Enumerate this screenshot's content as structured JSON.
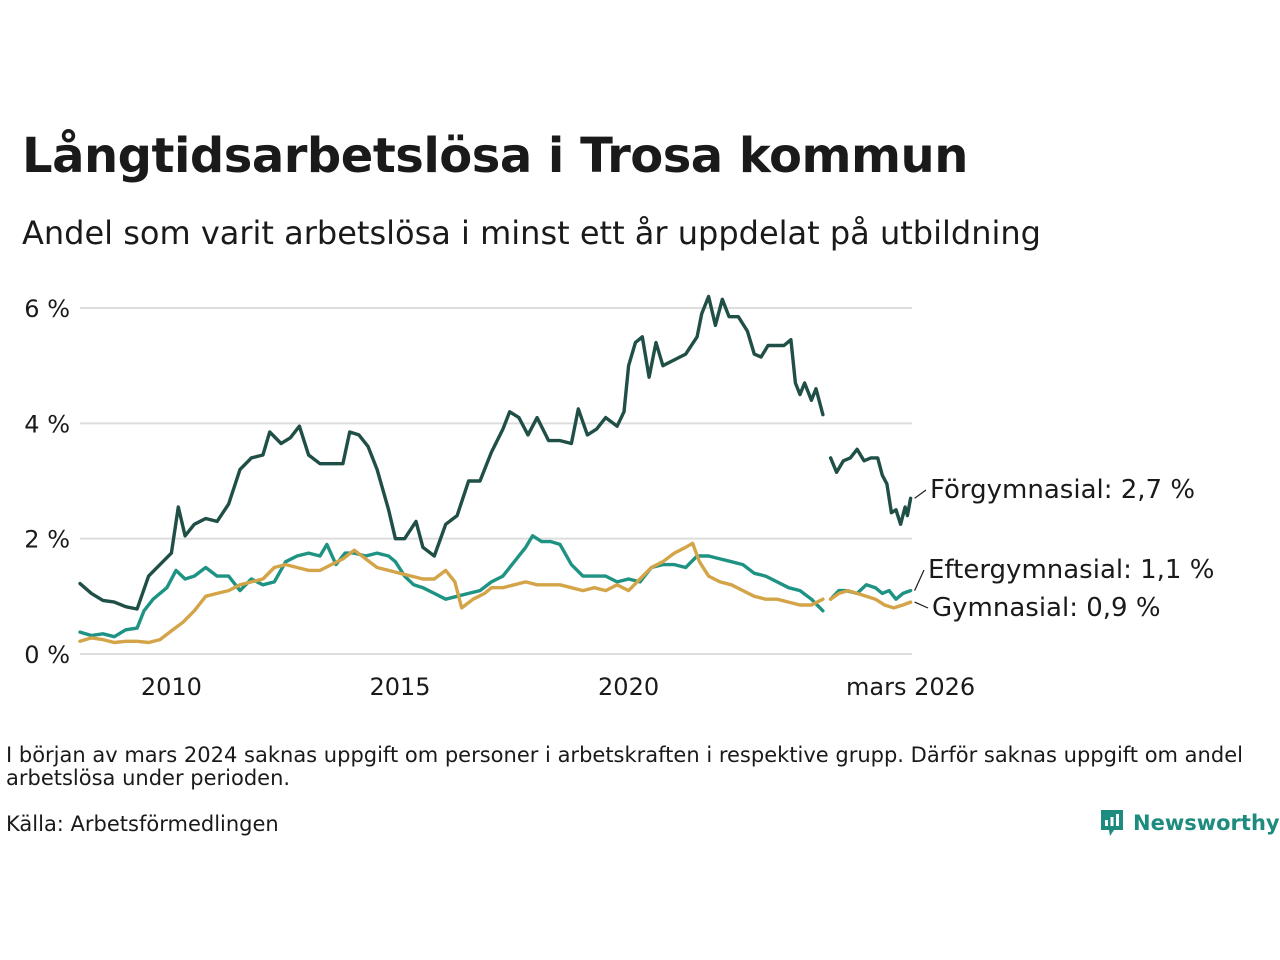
{
  "title": "Långtidsarbetslösa i Trosa kommun",
  "subtitle": "Andel som varit arbetslösa i minst ett år uppdelat på utbildning",
  "note": "I början av mars 2024 saknas uppgift om personer i arbetskraften i respektive grupp. Därför saknas uppgift om andel arbetslösa under perioden.",
  "source": "Källa: Arbetsförmedlingen",
  "brand": {
    "name": "Newsworthy",
    "icon": "bar-chart-logo-icon",
    "color": "#1d8c7f"
  },
  "chart_data": {
    "type": "line",
    "title": "Långtidsarbetslösa i Trosa kommun",
    "xlabel": "",
    "ylabel": "",
    "xlim": [
      2008.0,
      2026.2
    ],
    "ylim": [
      0,
      6.5
    ],
    "grid": true,
    "y_ticks": [
      0,
      2,
      4,
      6
    ],
    "y_tick_labels": [
      "0 %",
      "2 %",
      "4 %",
      "6 %"
    ],
    "x_ticks": [
      2010,
      2015,
      2020,
      2026.17
    ],
    "x_tick_labels": [
      "2010",
      "2015",
      "2020",
      "mars 2026"
    ],
    "gap": [
      2023.55,
      2024.33
    ],
    "series": [
      {
        "name": "Förgymnasial",
        "label": "Förgymnasial: 2,7 %",
        "color": "#1f4f46",
        "points": [
          [
            2008.0,
            1.22
          ],
          [
            2008.25,
            1.05
          ],
          [
            2008.5,
            0.93
          ],
          [
            2008.75,
            0.9
          ],
          [
            2009.0,
            0.82
          ],
          [
            2009.25,
            0.78
          ],
          [
            2009.5,
            1.35
          ],
          [
            2009.75,
            1.55
          ],
          [
            2010.0,
            1.75
          ],
          [
            2010.15,
            2.55
          ],
          [
            2010.3,
            2.05
          ],
          [
            2010.5,
            2.25
          ],
          [
            2010.75,
            2.35
          ],
          [
            2011.0,
            2.3
          ],
          [
            2011.25,
            2.6
          ],
          [
            2011.5,
            3.2
          ],
          [
            2011.75,
            3.4
          ],
          [
            2012.0,
            3.45
          ],
          [
            2012.15,
            3.85
          ],
          [
            2012.4,
            3.65
          ],
          [
            2012.6,
            3.75
          ],
          [
            2012.8,
            3.95
          ],
          [
            2013.0,
            3.45
          ],
          [
            2013.25,
            3.3
          ],
          [
            2013.5,
            3.3
          ],
          [
            2013.75,
            3.3
          ],
          [
            2013.9,
            3.85
          ],
          [
            2014.1,
            3.8
          ],
          [
            2014.3,
            3.6
          ],
          [
            2014.5,
            3.2
          ],
          [
            2014.75,
            2.5
          ],
          [
            2014.9,
            2.0
          ],
          [
            2015.1,
            2.0
          ],
          [
            2015.35,
            2.3
          ],
          [
            2015.5,
            1.85
          ],
          [
            2015.75,
            1.7
          ],
          [
            2016.0,
            2.25
          ],
          [
            2016.25,
            2.4
          ],
          [
            2016.5,
            3.0
          ],
          [
            2016.75,
            3.0
          ],
          [
            2017.0,
            3.5
          ],
          [
            2017.25,
            3.9
          ],
          [
            2017.4,
            4.2
          ],
          [
            2017.6,
            4.1
          ],
          [
            2017.8,
            3.8
          ],
          [
            2018.0,
            4.1
          ],
          [
            2018.25,
            3.7
          ],
          [
            2018.5,
            3.7
          ],
          [
            2018.75,
            3.65
          ],
          [
            2018.9,
            4.25
          ],
          [
            2019.1,
            3.8
          ],
          [
            2019.3,
            3.9
          ],
          [
            2019.5,
            4.1
          ],
          [
            2019.75,
            3.95
          ],
          [
            2019.9,
            4.2
          ],
          [
            2020.0,
            5.0
          ],
          [
            2020.15,
            5.4
          ],
          [
            2020.3,
            5.5
          ],
          [
            2020.45,
            4.8
          ],
          [
            2020.6,
            5.4
          ],
          [
            2020.75,
            5.0
          ],
          [
            2021.0,
            5.1
          ],
          [
            2021.25,
            5.2
          ],
          [
            2021.5,
            5.5
          ],
          [
            2021.6,
            5.9
          ],
          [
            2021.75,
            6.2
          ],
          [
            2021.9,
            5.7
          ],
          [
            2022.05,
            6.15
          ],
          [
            2022.2,
            5.85
          ],
          [
            2022.4,
            5.85
          ],
          [
            2022.6,
            5.6
          ],
          [
            2022.75,
            5.2
          ],
          [
            2022.9,
            5.15
          ],
          [
            2023.05,
            5.35
          ],
          [
            2023.25,
            5.35
          ],
          [
            2023.4,
            5.35
          ],
          [
            2023.55,
            5.45
          ],
          [
            2023.65,
            4.7
          ],
          [
            2023.75,
            4.5
          ],
          [
            2023.85,
            4.7
          ],
          [
            2024.0,
            4.4
          ],
          [
            2024.1,
            4.6
          ],
          [
            2024.25,
            4.15
          ],
          [
            2024.42,
            3.4
          ],
          [
            2024.55,
            3.15
          ],
          [
            2024.7,
            3.35
          ],
          [
            2024.85,
            3.4
          ],
          [
            2025.0,
            3.55
          ],
          [
            2025.15,
            3.35
          ],
          [
            2025.3,
            3.4
          ],
          [
            2025.45,
            3.4
          ],
          [
            2025.55,
            3.1
          ],
          [
            2025.65,
            2.95
          ],
          [
            2025.75,
            2.45
          ],
          [
            2025.85,
            2.5
          ],
          [
            2025.95,
            2.25
          ],
          [
            2026.05,
            2.55
          ],
          [
            2026.1,
            2.4
          ],
          [
            2026.17,
            2.7
          ]
        ]
      },
      {
        "name": "Eftergymnasial",
        "label": "Eftergymnasial: 1,1 %",
        "color": "#1f9383",
        "points": [
          [
            2008.0,
            0.38
          ],
          [
            2008.25,
            0.32
          ],
          [
            2008.5,
            0.35
          ],
          [
            2008.75,
            0.3
          ],
          [
            2009.0,
            0.42
          ],
          [
            2009.25,
            0.45
          ],
          [
            2009.4,
            0.75
          ],
          [
            2009.6,
            0.95
          ],
          [
            2009.9,
            1.15
          ],
          [
            2010.1,
            1.45
          ],
          [
            2010.3,
            1.3
          ],
          [
            2010.5,
            1.35
          ],
          [
            2010.75,
            1.5
          ],
          [
            2011.0,
            1.35
          ],
          [
            2011.25,
            1.35
          ],
          [
            2011.5,
            1.1
          ],
          [
            2011.75,
            1.3
          ],
          [
            2012.0,
            1.2
          ],
          [
            2012.25,
            1.25
          ],
          [
            2012.5,
            1.6
          ],
          [
            2012.75,
            1.7
          ],
          [
            2013.0,
            1.75
          ],
          [
            2013.25,
            1.7
          ],
          [
            2013.4,
            1.9
          ],
          [
            2013.6,
            1.55
          ],
          [
            2013.8,
            1.75
          ],
          [
            2014.0,
            1.75
          ],
          [
            2014.25,
            1.7
          ],
          [
            2014.5,
            1.75
          ],
          [
            2014.75,
            1.7
          ],
          [
            2014.9,
            1.6
          ],
          [
            2015.1,
            1.35
          ],
          [
            2015.3,
            1.2
          ],
          [
            2015.5,
            1.15
          ],
          [
            2015.75,
            1.05
          ],
          [
            2016.0,
            0.95
          ],
          [
            2016.25,
            1.0
          ],
          [
            2016.5,
            1.05
          ],
          [
            2016.75,
            1.1
          ],
          [
            2017.0,
            1.25
          ],
          [
            2017.25,
            1.35
          ],
          [
            2017.5,
            1.6
          ],
          [
            2017.75,
            1.85
          ],
          [
            2017.9,
            2.05
          ],
          [
            2018.1,
            1.95
          ],
          [
            2018.3,
            1.95
          ],
          [
            2018.5,
            1.9
          ],
          [
            2018.75,
            1.55
          ],
          [
            2019.0,
            1.35
          ],
          [
            2019.25,
            1.35
          ],
          [
            2019.5,
            1.35
          ],
          [
            2019.75,
            1.25
          ],
          [
            2020.0,
            1.3
          ],
          [
            2020.25,
            1.25
          ],
          [
            2020.5,
            1.5
          ],
          [
            2020.75,
            1.55
          ],
          [
            2021.0,
            1.55
          ],
          [
            2021.25,
            1.5
          ],
          [
            2021.5,
            1.7
          ],
          [
            2021.75,
            1.7
          ],
          [
            2022.0,
            1.65
          ],
          [
            2022.25,
            1.6
          ],
          [
            2022.5,
            1.55
          ],
          [
            2022.75,
            1.4
          ],
          [
            2023.0,
            1.35
          ],
          [
            2023.25,
            1.25
          ],
          [
            2023.5,
            1.15
          ],
          [
            2023.75,
            1.1
          ],
          [
            2024.0,
            0.95
          ],
          [
            2024.25,
            0.75
          ],
          [
            2024.42,
            0.95
          ],
          [
            2024.6,
            1.1
          ],
          [
            2024.75,
            1.1
          ],
          [
            2025.0,
            1.05
          ],
          [
            2025.2,
            1.2
          ],
          [
            2025.4,
            1.15
          ],
          [
            2025.55,
            1.05
          ],
          [
            2025.7,
            1.1
          ],
          [
            2025.85,
            0.95
          ],
          [
            2026.0,
            1.05
          ],
          [
            2026.17,
            1.1
          ]
        ]
      },
      {
        "name": "Gymnasial",
        "label": "Gymnasial: 0,9 %",
        "color": "#d4a449",
        "points": [
          [
            2008.0,
            0.22
          ],
          [
            2008.25,
            0.28
          ],
          [
            2008.5,
            0.25
          ],
          [
            2008.75,
            0.2
          ],
          [
            2009.0,
            0.22
          ],
          [
            2009.25,
            0.22
          ],
          [
            2009.5,
            0.2
          ],
          [
            2009.75,
            0.25
          ],
          [
            2010.0,
            0.4
          ],
          [
            2010.25,
            0.55
          ],
          [
            2010.5,
            0.75
          ],
          [
            2010.75,
            1.0
          ],
          [
            2011.0,
            1.05
          ],
          [
            2011.25,
            1.1
          ],
          [
            2011.5,
            1.2
          ],
          [
            2011.75,
            1.25
          ],
          [
            2012.0,
            1.3
          ],
          [
            2012.25,
            1.5
          ],
          [
            2012.5,
            1.55
          ],
          [
            2012.75,
            1.5
          ],
          [
            2013.0,
            1.45
          ],
          [
            2013.25,
            1.45
          ],
          [
            2013.5,
            1.55
          ],
          [
            2013.75,
            1.65
          ],
          [
            2014.0,
            1.8
          ],
          [
            2014.25,
            1.65
          ],
          [
            2014.5,
            1.5
          ],
          [
            2014.75,
            1.45
          ],
          [
            2015.0,
            1.4
          ],
          [
            2015.25,
            1.35
          ],
          [
            2015.5,
            1.3
          ],
          [
            2015.75,
            1.3
          ],
          [
            2016.0,
            1.45
          ],
          [
            2016.2,
            1.25
          ],
          [
            2016.35,
            0.8
          ],
          [
            2016.6,
            0.95
          ],
          [
            2016.85,
            1.05
          ],
          [
            2017.0,
            1.15
          ],
          [
            2017.25,
            1.15
          ],
          [
            2017.5,
            1.2
          ],
          [
            2017.75,
            1.25
          ],
          [
            2018.0,
            1.2
          ],
          [
            2018.25,
            1.2
          ],
          [
            2018.5,
            1.2
          ],
          [
            2018.75,
            1.15
          ],
          [
            2019.0,
            1.1
          ],
          [
            2019.25,
            1.15
          ],
          [
            2019.5,
            1.1
          ],
          [
            2019.75,
            1.2
          ],
          [
            2020.0,
            1.1
          ],
          [
            2020.25,
            1.3
          ],
          [
            2020.5,
            1.5
          ],
          [
            2020.75,
            1.6
          ],
          [
            2021.0,
            1.75
          ],
          [
            2021.25,
            1.85
          ],
          [
            2021.4,
            1.92
          ],
          [
            2021.55,
            1.6
          ],
          [
            2021.75,
            1.35
          ],
          [
            2022.0,
            1.25
          ],
          [
            2022.25,
            1.2
          ],
          [
            2022.5,
            1.1
          ],
          [
            2022.75,
            1.0
          ],
          [
            2023.0,
            0.95
          ],
          [
            2023.25,
            0.95
          ],
          [
            2023.5,
            0.9
          ],
          [
            2023.75,
            0.85
          ],
          [
            2024.0,
            0.85
          ],
          [
            2024.25,
            0.95
          ],
          [
            2024.42,
            0.95
          ],
          [
            2024.6,
            1.05
          ],
          [
            2024.8,
            1.1
          ],
          [
            2025.0,
            1.05
          ],
          [
            2025.2,
            1.0
          ],
          [
            2025.4,
            0.95
          ],
          [
            2025.6,
            0.85
          ],
          [
            2025.8,
            0.8
          ],
          [
            2026.0,
            0.85
          ],
          [
            2026.17,
            0.9
          ]
        ]
      }
    ]
  }
}
